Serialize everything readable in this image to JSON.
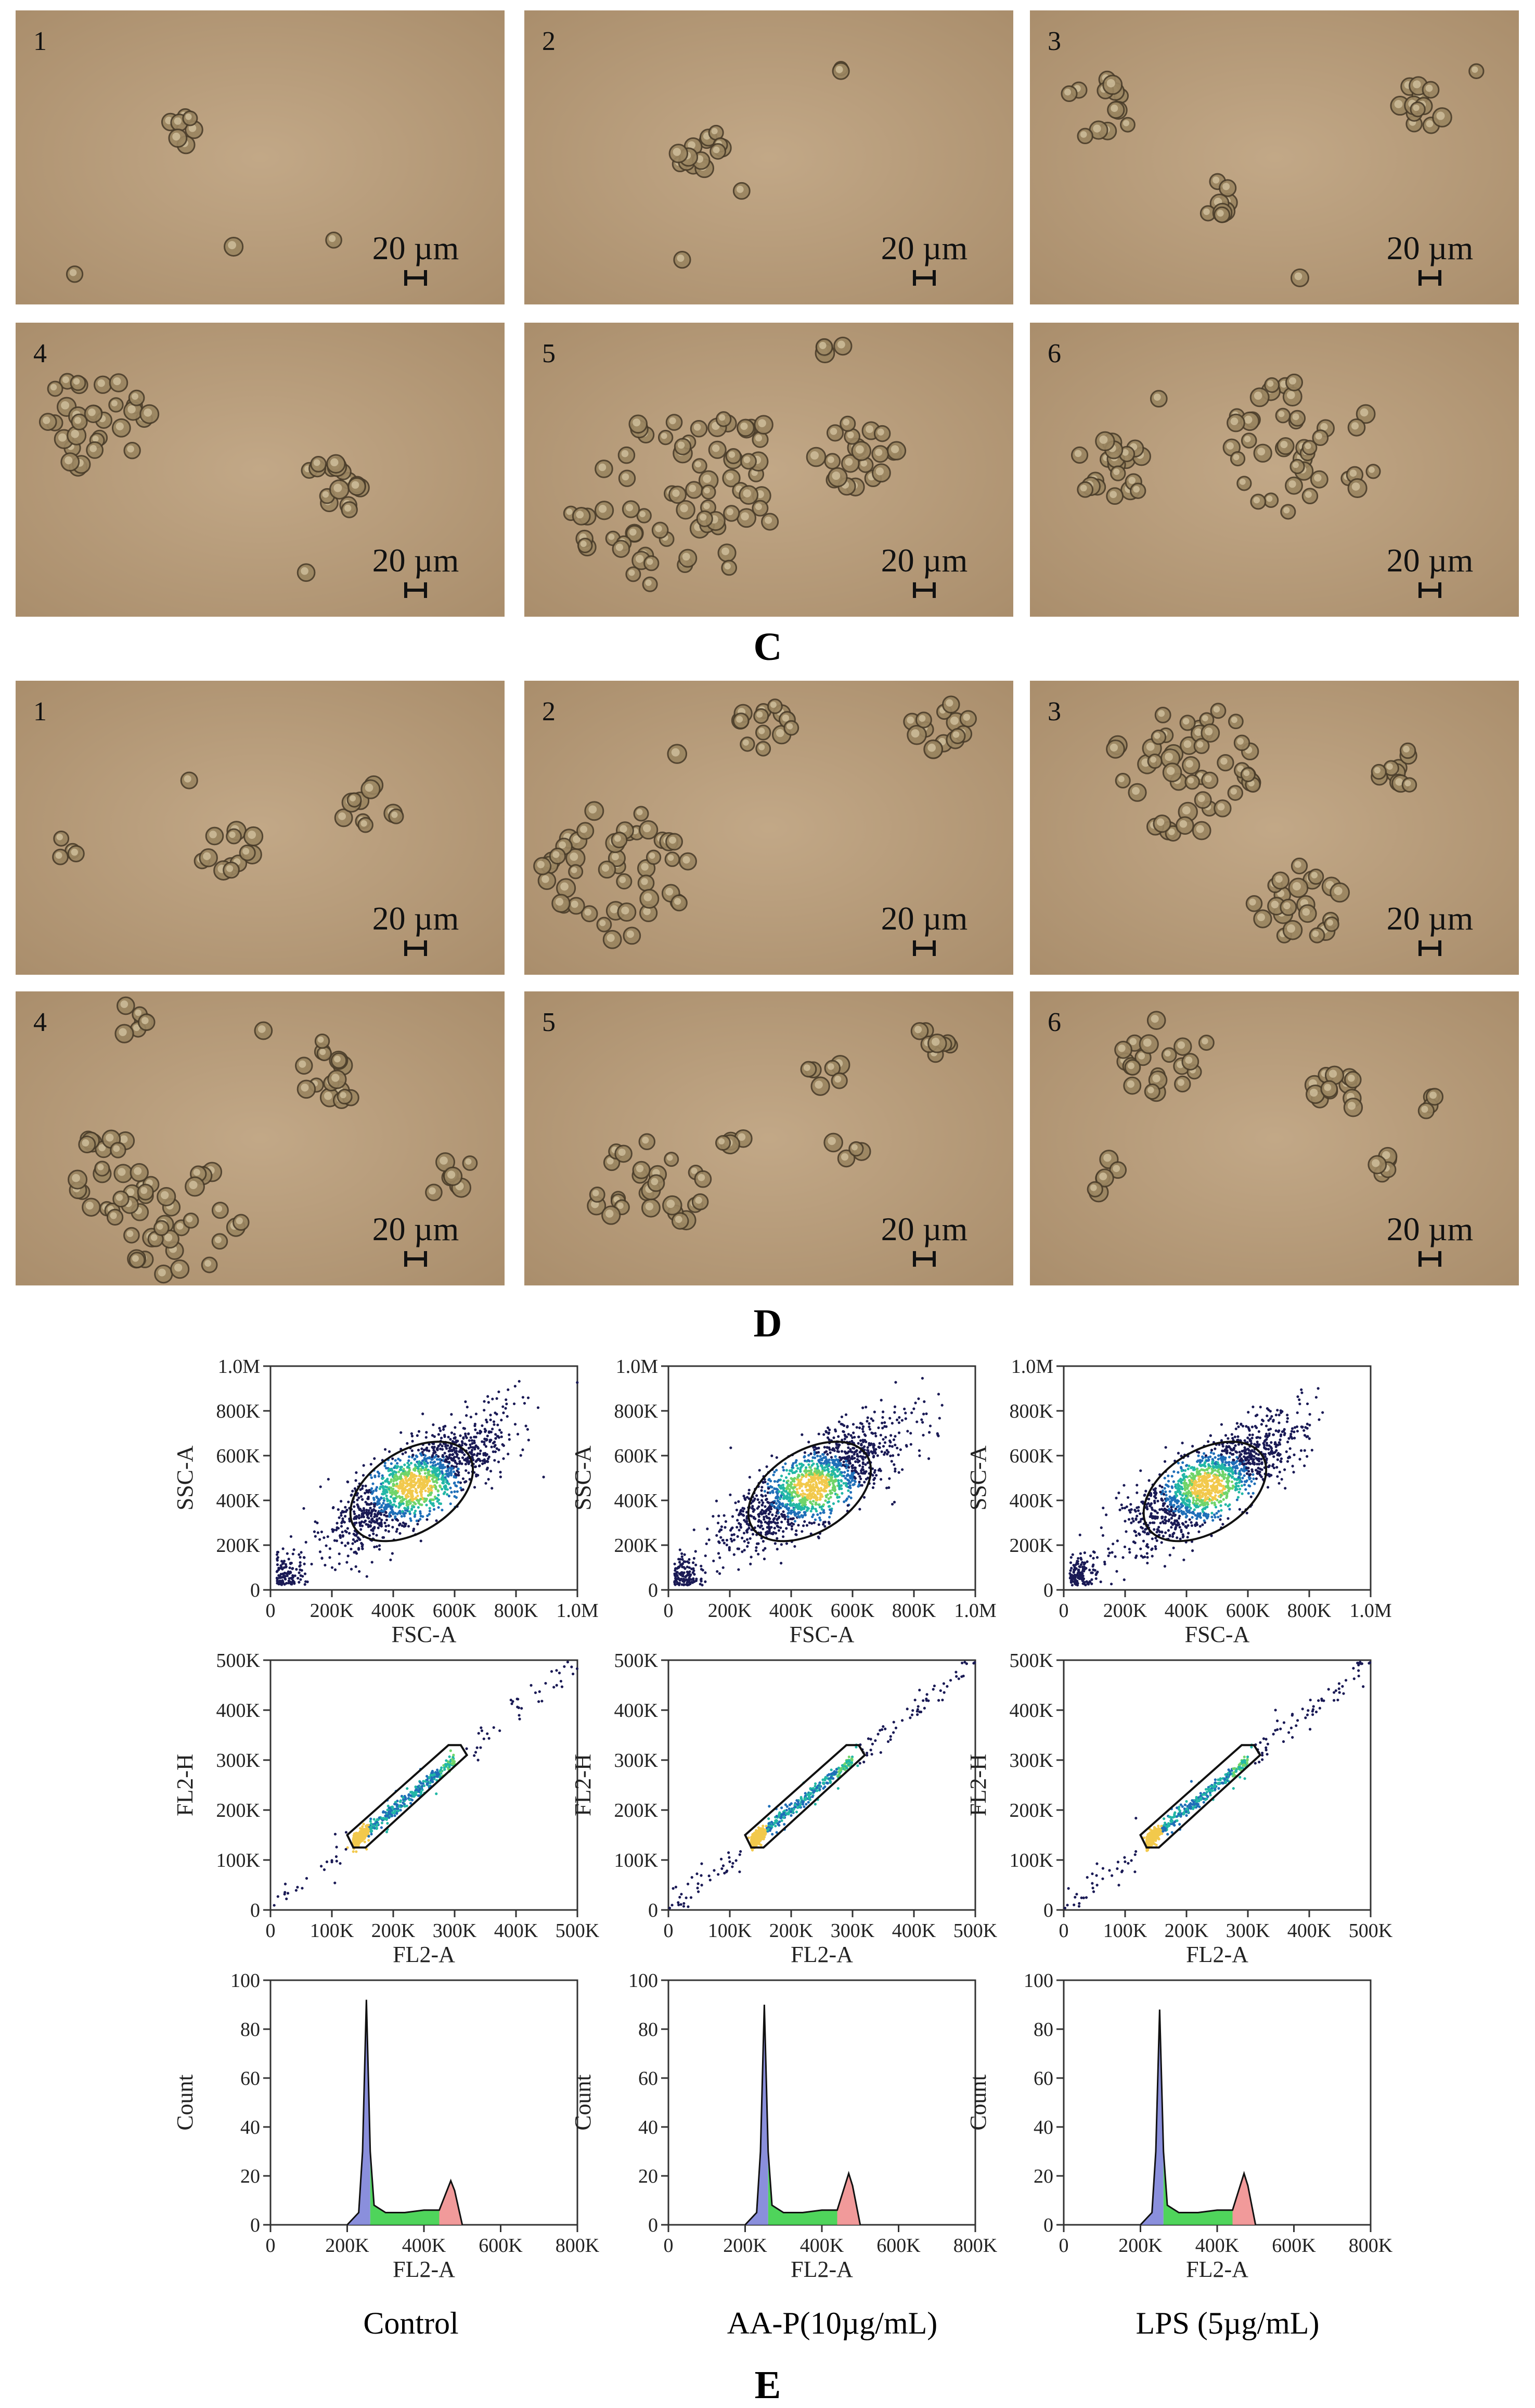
{
  "section_labels": {
    "c": "C",
    "d": "D",
    "e": "E"
  },
  "scale_label": "20 µm",
  "micrographs": {
    "c": [
      "1",
      "2",
      "3",
      "4",
      "5",
      "6"
    ],
    "d": [
      "1",
      "2",
      "3",
      "4",
      "5",
      "6"
    ]
  },
  "conditions": [
    "Control",
    "AA-P(10µg/mL)",
    "LPS (5µg/mL)"
  ],
  "plots": {
    "scatter": {
      "xlabel": "FSC-A",
      "ylabel": "SSC-A",
      "xticks": [
        "0",
        "200K",
        "400K",
        "600K",
        "800K",
        "1.0M"
      ],
      "yticks": [
        "0",
        "200K",
        "400K",
        "600K",
        "800K",
        "1.0M"
      ]
    },
    "singlet": {
      "xlabel": "FL2-A",
      "ylabel": "FL2-H",
      "xticks": [
        "0",
        "100K",
        "200K",
        "300K",
        "400K",
        "500K"
      ],
      "yticks": [
        "0",
        "100K",
        "200K",
        "300K",
        "400K",
        "500K"
      ]
    },
    "histogram": {
      "xlabel": "FL2-A",
      "ylabel": "Count",
      "xticks": [
        "0",
        "200K",
        "400K",
        "600K",
        "800K"
      ],
      "yticks": [
        "0",
        "20",
        "40",
        "60",
        "80",
        "100"
      ]
    }
  },
  "chart_data": [
    {
      "type": "area",
      "title": "Control",
      "xlabel": "FL2-A",
      "ylabel": "Count",
      "xlim": [
        0,
        800000
      ],
      "ylim": [
        0,
        100
      ],
      "series": [
        {
          "x": [
            200000,
            230000,
            240000,
            250000,
            260000,
            270000,
            300000,
            350000,
            400000,
            440000,
            460000,
            470000,
            480000,
            500000
          ],
          "values": [
            0,
            5,
            30,
            92,
            30,
            8,
            5,
            5,
            6,
            6,
            14,
            18,
            14,
            0
          ]
        }
      ]
    },
    {
      "type": "area",
      "title": "AA-P(10µg/mL)",
      "xlabel": "FL2-A",
      "ylabel": "Count",
      "xlim": [
        0,
        800000
      ],
      "ylim": [
        0,
        100
      ],
      "series": [
        {
          "x": [
            200000,
            230000,
            240000,
            250000,
            260000,
            270000,
            300000,
            350000,
            400000,
            440000,
            460000,
            470000,
            480000,
            500000
          ],
          "values": [
            0,
            5,
            30,
            90,
            30,
            8,
            5,
            5,
            6,
            6,
            16,
            21,
            16,
            0
          ]
        }
      ]
    },
    {
      "type": "area",
      "title": "LPS (5µg/mL)",
      "xlabel": "FL2-A",
      "ylabel": "Count",
      "xlim": [
        0,
        800000
      ],
      "ylim": [
        0,
        100
      ],
      "series": [
        {
          "x": [
            200000,
            230000,
            240000,
            250000,
            260000,
            270000,
            300000,
            350000,
            400000,
            440000,
            460000,
            470000,
            480000,
            500000
          ],
          "values": [
            0,
            5,
            30,
            88,
            30,
            8,
            5,
            5,
            6,
            6,
            16,
            21,
            16,
            0
          ]
        }
      ]
    }
  ]
}
